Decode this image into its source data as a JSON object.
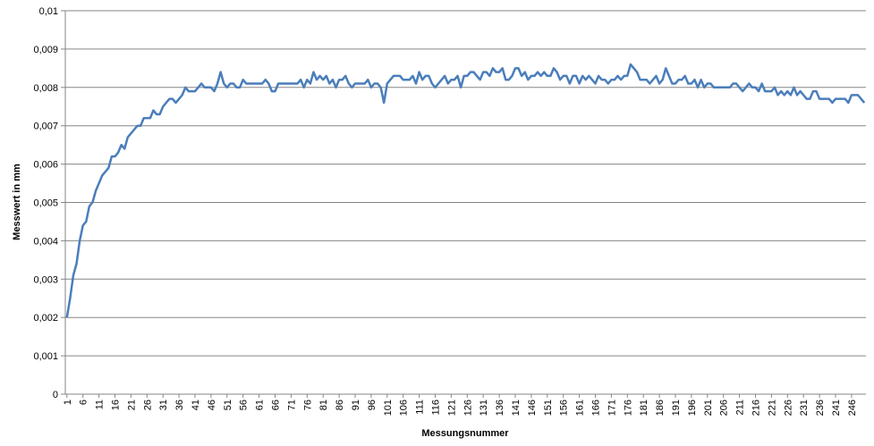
{
  "chart_data": {
    "type": "line",
    "x_label": "Messungsnummer",
    "y_label": "Messwert in mm",
    "color": "#4a7ebb",
    "grid": true,
    "x": [
      1,
      2,
      3,
      4,
      5,
      6,
      7,
      8,
      9,
      10,
      11,
      12,
      13,
      14,
      15,
      16,
      17,
      18,
      19,
      20,
      21,
      22,
      23,
      24,
      25,
      26,
      27,
      28,
      29,
      30,
      31,
      32,
      33,
      34,
      35,
      36,
      37,
      38,
      39,
      40,
      41,
      42,
      43,
      44,
      45,
      46,
      47,
      48,
      49,
      50,
      51,
      52,
      53,
      54,
      55,
      56,
      57,
      58,
      59,
      60,
      61,
      62,
      63,
      64,
      65,
      66,
      67,
      68,
      69,
      70,
      71,
      72,
      73,
      74,
      75,
      76,
      77,
      78,
      79,
      80,
      81,
      82,
      83,
      84,
      85,
      86,
      87,
      88,
      89,
      90,
      91,
      92,
      93,
      94,
      95,
      96,
      97,
      98,
      99,
      100,
      101,
      102,
      103,
      104,
      105,
      106,
      107,
      108,
      109,
      110,
      111,
      112,
      113,
      114,
      115,
      116,
      117,
      118,
      119,
      120,
      121,
      122,
      123,
      124,
      125,
      126,
      127,
      128,
      129,
      130,
      131,
      132,
      133,
      134,
      135,
      136,
      137,
      138,
      139,
      140,
      141,
      142,
      143,
      144,
      145,
      146,
      147,
      148,
      149,
      150,
      151,
      152,
      153,
      154,
      155,
      156,
      157,
      158,
      159,
      160,
      161,
      162,
      163,
      164,
      165,
      166,
      167,
      168,
      169,
      170,
      171,
      172,
      173,
      174,
      175,
      176,
      177,
      178,
      179,
      180,
      181,
      182,
      183,
      184,
      185,
      186,
      187,
      188,
      189,
      190,
      191,
      192,
      193,
      194,
      195,
      196,
      197,
      198,
      199,
      200,
      201,
      202,
      203,
      204,
      205,
      206,
      207,
      208,
      209,
      210,
      211,
      212,
      213,
      214,
      215,
      216,
      217,
      218,
      219,
      220,
      221,
      222,
      223,
      224,
      225,
      226,
      227,
      228,
      229,
      230,
      231,
      232,
      233,
      234,
      235,
      236,
      237,
      238,
      239,
      240,
      241,
      242,
      243,
      244,
      245,
      246,
      247,
      248,
      249,
      250
    ],
    "values": [
      0.002,
      0.0025,
      0.0031,
      0.0034,
      0.004,
      0.0044,
      0.0045,
      0.0049,
      0.005,
      0.0053,
      0.0055,
      0.0057,
      0.0058,
      0.0059,
      0.0062,
      0.0062,
      0.0063,
      0.0065,
      0.0064,
      0.0067,
      0.0068,
      0.0069,
      0.007,
      0.007,
      0.0072,
      0.0072,
      0.0072,
      0.0074,
      0.0073,
      0.0073,
      0.0075,
      0.0076,
      0.0077,
      0.0077,
      0.0076,
      0.0077,
      0.0078,
      0.008,
      0.0079,
      0.0079,
      0.0079,
      0.008,
      0.0081,
      0.008,
      0.008,
      0.008,
      0.0079,
      0.0081,
      0.0084,
      0.0081,
      0.008,
      0.0081,
      0.0081,
      0.008,
      0.008,
      0.0082,
      0.0081,
      0.0081,
      0.0081,
      0.0081,
      0.0081,
      0.0081,
      0.0082,
      0.0081,
      0.0079,
      0.0079,
      0.0081,
      0.0081,
      0.0081,
      0.0081,
      0.0081,
      0.0081,
      0.0081,
      0.0082,
      0.008,
      0.0082,
      0.0081,
      0.0084,
      0.0082,
      0.0083,
      0.0082,
      0.0083,
      0.0081,
      0.0082,
      0.008,
      0.0082,
      0.0082,
      0.0083,
      0.0081,
      0.008,
      0.0081,
      0.0081,
      0.0081,
      0.0081,
      0.0082,
      0.008,
      0.0081,
      0.0081,
      0.008,
      0.0076,
      0.0081,
      0.0082,
      0.0083,
      0.0083,
      0.0083,
      0.0082,
      0.0082,
      0.0082,
      0.0083,
      0.0081,
      0.0084,
      0.0082,
      0.0083,
      0.0083,
      0.0081,
      0.008,
      0.0081,
      0.0082,
      0.0083,
      0.0081,
      0.0082,
      0.0082,
      0.0083,
      0.008,
      0.0083,
      0.0083,
      0.0084,
      0.0084,
      0.0083,
      0.0082,
      0.0084,
      0.0084,
      0.0083,
      0.0085,
      0.0084,
      0.0084,
      0.0085,
      0.0082,
      0.0082,
      0.0083,
      0.0085,
      0.0085,
      0.0083,
      0.0084,
      0.0082,
      0.0083,
      0.0083,
      0.0084,
      0.0083,
      0.0084,
      0.0083,
      0.0083,
      0.0085,
      0.0084,
      0.0082,
      0.0083,
      0.0083,
      0.0081,
      0.0083,
      0.0083,
      0.0081,
      0.0083,
      0.0082,
      0.0083,
      0.0082,
      0.0081,
      0.0083,
      0.0082,
      0.0082,
      0.0081,
      0.0082,
      0.0082,
      0.0083,
      0.0082,
      0.0083,
      0.0083,
      0.0086,
      0.0085,
      0.0084,
      0.0082,
      0.0082,
      0.0082,
      0.0081,
      0.0082,
      0.0083,
      0.0081,
      0.0082,
      0.0085,
      0.0083,
      0.0081,
      0.0081,
      0.0082,
      0.0082,
      0.0083,
      0.0081,
      0.0081,
      0.0082,
      0.008,
      0.0082,
      0.008,
      0.0081,
      0.0081,
      0.008,
      0.008,
      0.008,
      0.008,
      0.008,
      0.008,
      0.0081,
      0.0081,
      0.008,
      0.0079,
      0.008,
      0.0081,
      0.008,
      0.008,
      0.0079,
      0.0081,
      0.0079,
      0.0079,
      0.0079,
      0.008,
      0.0078,
      0.0079,
      0.0078,
      0.0079,
      0.0078,
      0.008,
      0.0078,
      0.0079,
      0.0078,
      0.0077,
      0.0077,
      0.0079,
      0.0079,
      0.0077,
      0.0077,
      0.0077,
      0.0077,
      0.0076,
      0.0077,
      0.0077,
      0.0077,
      0.0077,
      0.0076,
      0.0078,
      0.0078,
      0.0078,
      0.0077,
      0.0076
    ],
    "xlim": [
      0.5,
      250.5
    ],
    "xticks": [
      1,
      6,
      11,
      16,
      21,
      26,
      31,
      36,
      41,
      46,
      51,
      56,
      61,
      66,
      71,
      76,
      81,
      86,
      91,
      96,
      101,
      106,
      111,
      116,
      121,
      126,
      131,
      136,
      141,
      146,
      151,
      156,
      161,
      166,
      171,
      176,
      181,
      186,
      191,
      196,
      201,
      206,
      211,
      216,
      221,
      226,
      231,
      236,
      241,
      246
    ],
    "ylim": [
      0,
      0.01
    ],
    "yticks": [
      0,
      {
        "value": 0.001,
        "label": "0,001"
      },
      {
        "value": 0.002,
        "label": "0,002"
      },
      {
        "value": 0.003,
        "label": "0,003"
      },
      {
        "value": 0.004,
        "label": "0,004"
      },
      {
        "value": 0.005,
        "label": "0,005"
      },
      {
        "value": 0.006,
        "label": "0,006"
      },
      {
        "value": 0.007,
        "label": "0,007"
      },
      {
        "value": 0.008,
        "label": "0,008"
      },
      {
        "value": 0.009,
        "label": "0,009"
      },
      {
        "value": 0.01,
        "label": "0,01"
      }
    ]
  }
}
